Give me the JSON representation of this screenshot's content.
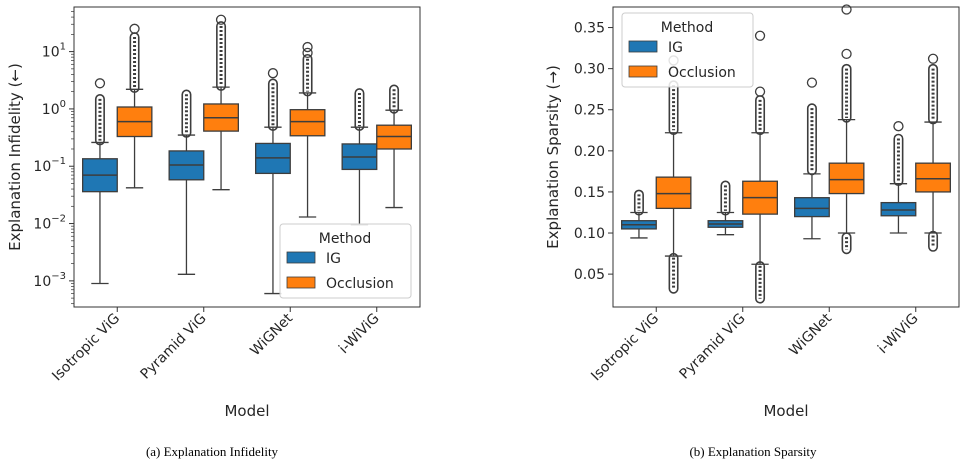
{
  "colors": {
    "ig": "#1f77b4",
    "occlusion": "#ff7f0e",
    "line": "#3d3d3d"
  },
  "chart_data": [
    {
      "type": "box",
      "caption": "(a) Explanation Infidelity",
      "xlabel": "Model",
      "ylabel": "Explanation Infidelity (←)",
      "yscale": "log",
      "ylim": [
        0.00035,
        60
      ],
      "yticks": [
        {
          "value": 0.001,
          "base": "10",
          "exp": "−3"
        },
        {
          "value": 0.01,
          "base": "10",
          "exp": "−2"
        },
        {
          "value": 0.1,
          "base": "10",
          "exp": "−1"
        },
        {
          "value": 1,
          "base": "10",
          "exp": "0"
        },
        {
          "value": 10,
          "base": "10",
          "exp": "1"
        }
      ],
      "categories": [
        "Isotropic ViG",
        "Pyramid ViG",
        "WiGNet",
        "i-WiViG"
      ],
      "legend": {
        "title": "Method",
        "position": "lower right",
        "entries": [
          "IG",
          "Occlusion"
        ]
      },
      "series": [
        {
          "name": "IG",
          "boxes": [
            {
              "min": 0.0009,
              "q1": 0.036,
              "median": 0.07,
              "q3": 0.135,
              "max": 0.26,
              "outliers_from": 0.28,
              "outliers_to": 1.5,
              "extra_outliers": [
                2.8
              ]
            },
            {
              "min": 0.0013,
              "q1": 0.058,
              "median": 0.105,
              "q3": 0.185,
              "max": 0.35,
              "outliers_from": 0.38,
              "outliers_to": 1.8,
              "extra_outliers": []
            },
            {
              "min": 0.0006,
              "q1": 0.075,
              "median": 0.14,
              "q3": 0.25,
              "max": 0.48,
              "outliers_from": 0.5,
              "outliers_to": 2.8,
              "extra_outliers": [
                4.2
              ]
            },
            {
              "min": 0.0095,
              "q1": 0.088,
              "median": 0.145,
              "q3": 0.245,
              "max": 0.48,
              "outliers_from": 0.5,
              "outliers_to": 1.9,
              "extra_outliers": []
            }
          ]
        },
        {
          "name": "Occlusion",
          "boxes": [
            {
              "min": 0.042,
              "q1": 0.33,
              "median": 0.6,
              "q3": 1.08,
              "max": 2.2,
              "outliers_from": 2.3,
              "outliers_to": 18,
              "extra_outliers": [
                25
              ]
            },
            {
              "min": 0.039,
              "q1": 0.41,
              "median": 0.7,
              "q3": 1.22,
              "max": 2.4,
              "outliers_from": 2.5,
              "outliers_to": 28,
              "extra_outliers": [
                36
              ]
            },
            {
              "min": 0.013,
              "q1": 0.34,
              "median": 0.6,
              "q3": 0.97,
              "max": 1.9,
              "outliers_from": 2.0,
              "outliers_to": 7.5,
              "extra_outliers": [
                9.5,
                12
              ]
            },
            {
              "min": 0.019,
              "q1": 0.2,
              "median": 0.33,
              "q3": 0.52,
              "max": 0.95,
              "outliers_from": 1.0,
              "outliers_to": 2.2,
              "extra_outliers": []
            }
          ]
        }
      ]
    },
    {
      "type": "box",
      "caption": "(b) Explanation Sparsity",
      "xlabel": "Model",
      "ylabel": "Explanation Sparsity (→)",
      "yscale": "linear",
      "ylim": [
        0.01,
        0.375
      ],
      "yticks": [
        {
          "value": 0.05,
          "label": "0.05"
        },
        {
          "value": 0.1,
          "label": "0.10"
        },
        {
          "value": 0.15,
          "label": "0.15"
        },
        {
          "value": 0.2,
          "label": "0.20"
        },
        {
          "value": 0.25,
          "label": "0.25"
        },
        {
          "value": 0.3,
          "label": "0.30"
        },
        {
          "value": 0.35,
          "label": "0.35"
        }
      ],
      "categories": [
        "Isotropic ViG",
        "Pyramid ViG",
        "WiGNet",
        "i-WiViG"
      ],
      "legend": {
        "title": "Method",
        "position": "upper left",
        "entries": [
          "IG",
          "Occlusion"
        ]
      },
      "series": [
        {
          "name": "IG",
          "boxes": [
            {
              "min": 0.094,
              "q1": 0.105,
              "median": 0.11,
              "q3": 0.115,
              "max": 0.125,
              "outliers_from": 0.127,
              "outliers_to": 0.147,
              "extra_outliers": []
            },
            {
              "min": 0.098,
              "q1": 0.107,
              "median": 0.111,
              "q3": 0.115,
              "max": 0.125,
              "outliers_from": 0.127,
              "outliers_to": 0.158,
              "extra_outliers": []
            },
            {
              "min": 0.093,
              "q1": 0.12,
              "median": 0.13,
              "q3": 0.143,
              "max": 0.172,
              "outliers_from": 0.176,
              "outliers_to": 0.252,
              "extra_outliers": [
                0.283
              ]
            },
            {
              "min": 0.1,
              "q1": 0.121,
              "median": 0.128,
              "q3": 0.137,
              "max": 0.16,
              "outliers_from": 0.163,
              "outliers_to": 0.215,
              "extra_outliers": [
                0.23
              ]
            }
          ]
        },
        {
          "name": "Occlusion",
          "boxes": [
            {
              "min": 0.072,
              "q1": 0.13,
              "median": 0.148,
              "q3": 0.168,
              "max": 0.222,
              "outliers_from": 0.225,
              "outliers_to": 0.28,
              "extra_outliers": [
                0.297,
                0.31
              ],
              "low_outliers_from": 0.032,
              "low_outliers_to": 0.07
            },
            {
              "min": 0.062,
              "q1": 0.123,
              "median": 0.143,
              "q3": 0.163,
              "max": 0.222,
              "outliers_from": 0.225,
              "outliers_to": 0.262,
              "extra_outliers": [
                0.272,
                0.34
              ],
              "low_outliers_from": 0.02,
              "low_outliers_to": 0.06
            },
            {
              "min": 0.1,
              "q1": 0.148,
              "median": 0.165,
              "q3": 0.185,
              "max": 0.238,
              "outliers_from": 0.24,
              "outliers_to": 0.3,
              "extra_outliers": [
                0.318,
                0.372
              ],
              "low_outliers_from": 0.08,
              "low_outliers_to": 0.095
            },
            {
              "min": 0.1,
              "q1": 0.15,
              "median": 0.166,
              "q3": 0.185,
              "max": 0.235,
              "outliers_from": 0.238,
              "outliers_to": 0.3,
              "extra_outliers": [
                0.312
              ],
              "low_outliers_from": 0.083,
              "low_outliers_to": 0.097
            }
          ]
        }
      ]
    }
  ]
}
